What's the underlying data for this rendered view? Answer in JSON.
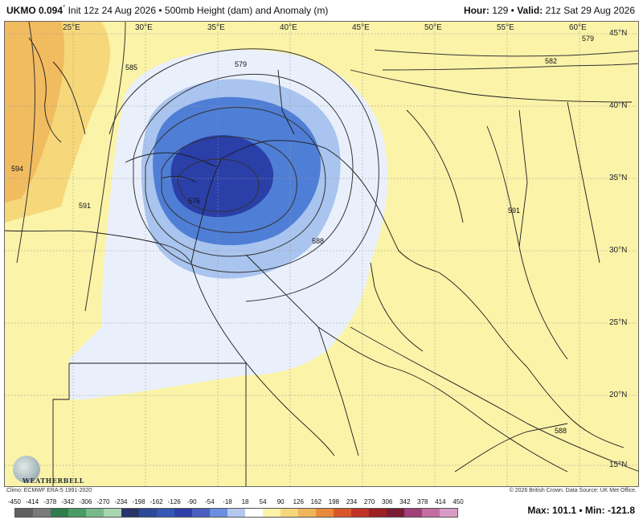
{
  "header": {
    "model": "UKMO 0.094",
    "model_sup": "°",
    "init": "Init 12z 24 Aug 2026",
    "bullet": "•",
    "product": "500mb Height (dam) and Anomaly (m)",
    "hour_label": "Hour:",
    "hour_value": "129",
    "valid_label": "Valid:",
    "valid_value": "21z Sat 29 Aug 2026"
  },
  "map": {
    "lon_labels": [
      "25°E",
      "30°E",
      "35°E",
      "40°E",
      "45°E",
      "50°E",
      "55°E",
      "60°E"
    ],
    "lat_labels": [
      "45°N",
      "40°N",
      "35°N",
      "30°N",
      "25°N",
      "20°N",
      "15°N"
    ],
    "contour_labels": [
      "579",
      "582",
      "585",
      "591",
      "594",
      "588",
      "576",
      "579",
      "591",
      "588"
    ],
    "anomaly_center": "negative",
    "colors": {
      "land_line": "#1a1a1a",
      "contour": "#333333",
      "deep_blue": "#2a3fa8",
      "mid_blue": "#4f7ed6",
      "light_blue": "#a9c4ee",
      "pale_blue": "#eaf0fb",
      "yellow": "#fbf3a8",
      "light_orange": "#f6d77a",
      "orange": "#f0b45a"
    }
  },
  "logo": {
    "text": "WEATHERBELL"
  },
  "footer": {
    "climo": "Climo: ECMWF ERA-5 1991-2020",
    "credit": "© 2026 British Crown. Data Source: UK Met Office."
  },
  "colorbar": {
    "ticks": [
      "-450",
      "-414",
      "-378",
      "-342",
      "-306",
      "-270",
      "-234",
      "-198",
      "-162",
      "-126",
      "-90",
      "-54",
      "-18",
      "18",
      "54",
      "90",
      "126",
      "162",
      "198",
      "234",
      "270",
      "306",
      "342",
      "378",
      "414",
      "450"
    ],
    "colors": [
      "#606060",
      "#7a7a7a",
      "#2e7d4a",
      "#4a9b62",
      "#76b98a",
      "#a6d5b1",
      "#27356b",
      "#2d4897",
      "#3656b6",
      "#2f3fa8",
      "#4a5fc0",
      "#6b8fde",
      "#b3c7ef",
      "#ffffff",
      "#fbf3a8",
      "#f6d77a",
      "#f0b45a",
      "#e98a3a",
      "#d9582b",
      "#bf3426",
      "#9b2024",
      "#7a1c36",
      "#a0417a",
      "#c46da3",
      "#d89dc4"
    ]
  },
  "stats": {
    "max_label": "Max:",
    "max_value": "101.1",
    "sep": "•",
    "min_label": "Min:",
    "min_value": "-121.8"
  }
}
